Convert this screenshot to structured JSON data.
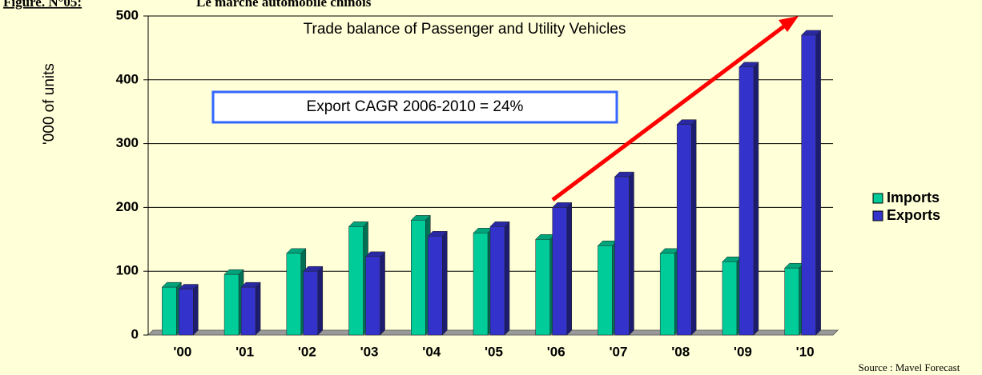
{
  "chart_data": {
    "type": "bar",
    "header": "Figure. N°05:",
    "header_title": "Le marché automobile chinois",
    "title": "Trade balance of Passenger and Utility Vehicles",
    "annotation": "Export CAGR 2006-2010 = 24%",
    "y_label": "'000 of units",
    "source": "Source : Mavel Forecast",
    "categories": [
      "'00",
      "'01",
      "'02",
      "'03",
      "'04",
      "'05",
      "'06",
      "'07",
      "'08",
      "'09",
      "'10"
    ],
    "series": [
      {
        "name": "Imports",
        "color": "#00cc99",
        "values": [
          75,
          95,
          128,
          170,
          180,
          160,
          150,
          140,
          128,
          115,
          105
        ]
      },
      {
        "name": "Exports",
        "color": "#3333cc",
        "values": [
          72,
          75,
          100,
          123,
          155,
          170,
          200,
          248,
          330,
          420,
          470
        ]
      }
    ],
    "ylim": [
      0,
      500
    ],
    "yticks": [
      0,
      100,
      200,
      300,
      400,
      500
    ],
    "grid": true,
    "legend": "right"
  }
}
